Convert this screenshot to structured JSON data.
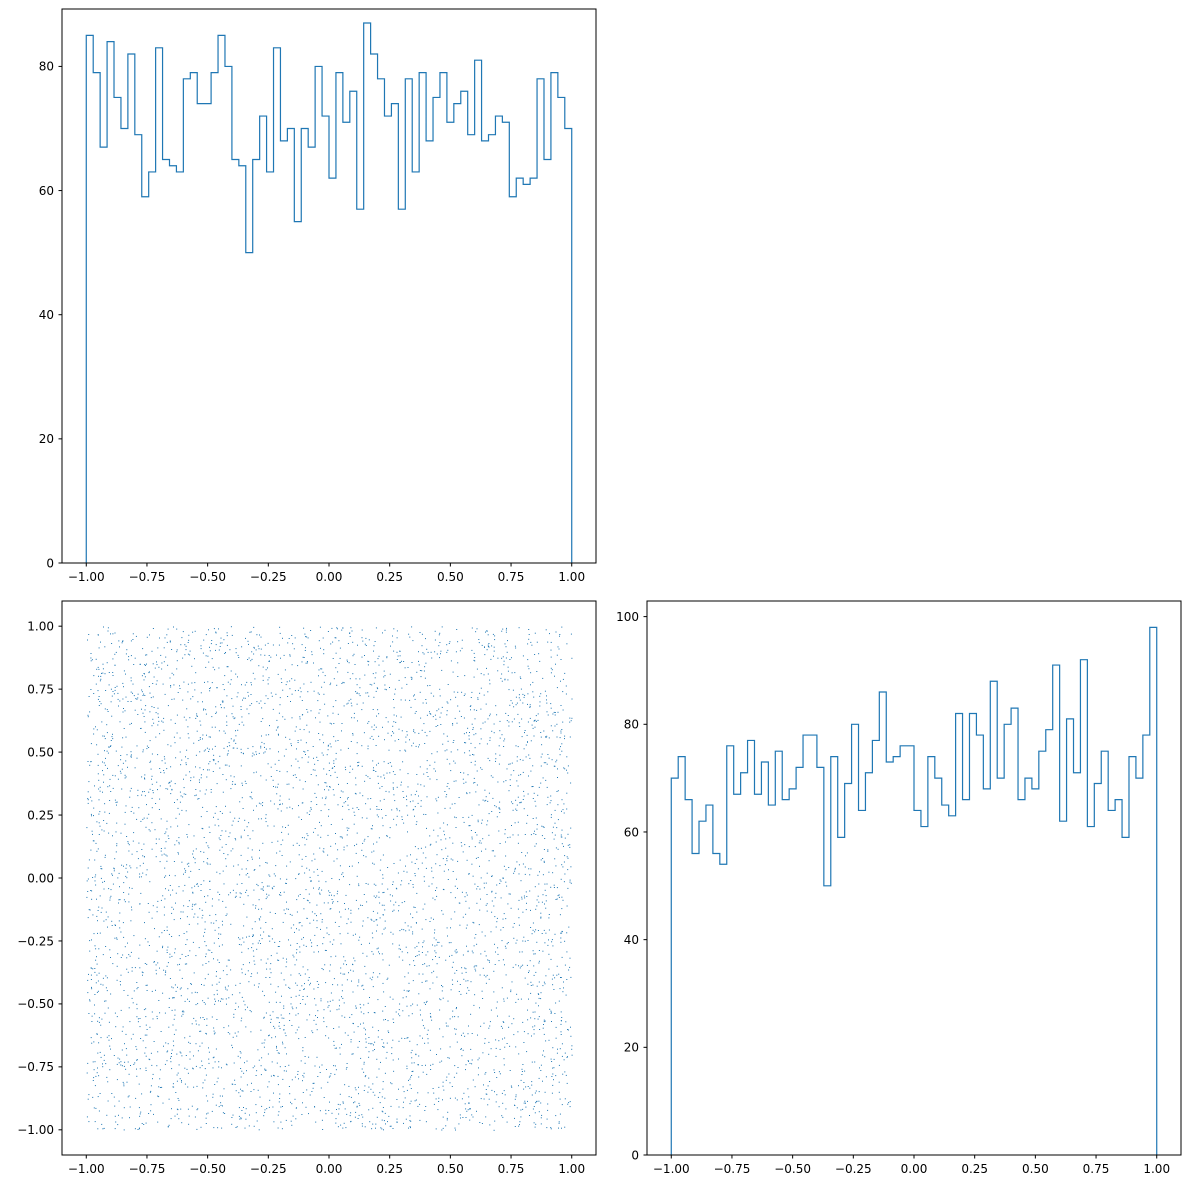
{
  "colors": {
    "series": "#1f77b4",
    "axis": "#000000",
    "background": "#ffffff"
  },
  "chart_data": [
    {
      "type": "histogram",
      "position": "top-left",
      "histtype": "step",
      "bin_range": [
        -1,
        1
      ],
      "xlim": [
        -1.1,
        1.1
      ],
      "ylim": [
        0,
        89.25
      ],
      "xticks": [
        -1.0,
        -0.75,
        -0.5,
        -0.25,
        0.0,
        0.25,
        0.5,
        0.75,
        1.0
      ],
      "xtick_labels": [
        "−1.00",
        "−0.75",
        "−0.50",
        "−0.25",
        "0.00",
        "0.25",
        "0.50",
        "0.75",
        "1.00"
      ],
      "yticks": [
        0,
        20,
        40,
        60,
        80
      ],
      "ytick_labels": [
        "0",
        "20",
        "40",
        "60",
        "80"
      ],
      "counts": [
        85,
        79,
        67,
        84,
        75,
        70,
        82,
        69,
        59,
        63,
        83,
        65,
        64,
        63,
        78,
        79,
        74,
        74,
        79,
        85,
        80,
        65,
        64,
        50,
        65,
        72,
        63,
        83,
        68,
        70,
        55,
        70,
        67,
        80,
        72,
        62,
        79,
        71,
        76,
        57,
        87,
        82,
        78,
        72,
        74,
        57,
        78,
        63,
        79,
        68,
        75,
        79,
        71,
        74,
        76,
        69,
        81,
        68,
        69,
        72,
        71,
        59,
        62,
        61,
        62,
        78,
        65,
        79,
        75,
        70
      ]
    },
    {
      "type": "scatter",
      "position": "bottom-left",
      "marker": "pixel",
      "n_points": 5000,
      "x_range": [
        -1,
        1
      ],
      "y_range": [
        -1,
        1
      ],
      "xlim": [
        -1.1,
        1.1
      ],
      "ylim": [
        -1.1,
        1.1
      ],
      "xticks": [
        -1.0,
        -0.75,
        -0.5,
        -0.25,
        0.0,
        0.25,
        0.5,
        0.75,
        1.0
      ],
      "xtick_labels": [
        "−1.00",
        "−0.75",
        "−0.50",
        "−0.25",
        "0.00",
        "0.25",
        "0.50",
        "0.75",
        "1.00"
      ],
      "yticks": [
        -1.0,
        -0.75,
        -0.5,
        -0.25,
        0.0,
        0.25,
        0.5,
        0.75,
        1.0
      ],
      "ytick_labels": [
        "−1.00",
        "−0.75",
        "−0.50",
        "−0.25",
        "0.00",
        "0.25",
        "0.50",
        "0.75",
        "1.00"
      ]
    },
    {
      "type": "histogram",
      "position": "bottom-right",
      "histtype": "step",
      "bin_range": [
        -1,
        1
      ],
      "xlim": [
        -1.1,
        1.1
      ],
      "ylim": [
        0,
        102.9
      ],
      "xticks": [
        -1.0,
        -0.75,
        -0.5,
        -0.25,
        0.0,
        0.25,
        0.5,
        0.75,
        1.0
      ],
      "xtick_labels": [
        "−1.00",
        "−0.75",
        "−0.50",
        "−0.25",
        "0.00",
        "0.25",
        "0.50",
        "0.75",
        "1.00"
      ],
      "yticks": [
        0,
        20,
        40,
        60,
        80,
        100
      ],
      "ytick_labels": [
        "0",
        "20",
        "40",
        "60",
        "80",
        "100"
      ],
      "counts": [
        70,
        74,
        66,
        56,
        62,
        65,
        56,
        54,
        76,
        67,
        71,
        77,
        67,
        73,
        65,
        75,
        66,
        68,
        72,
        78,
        78,
        72,
        50,
        74,
        59,
        69,
        80,
        64,
        71,
        77,
        86,
        73,
        74,
        76,
        76,
        64,
        61,
        74,
        70,
        65,
        63,
        82,
        66,
        82,
        78,
        68,
        88,
        70,
        80,
        83,
        66,
        70,
        68,
        75,
        79,
        91,
        62,
        81,
        71,
        92,
        61,
        69,
        75,
        64,
        66,
        59,
        74,
        70,
        78,
        98
      ]
    }
  ]
}
